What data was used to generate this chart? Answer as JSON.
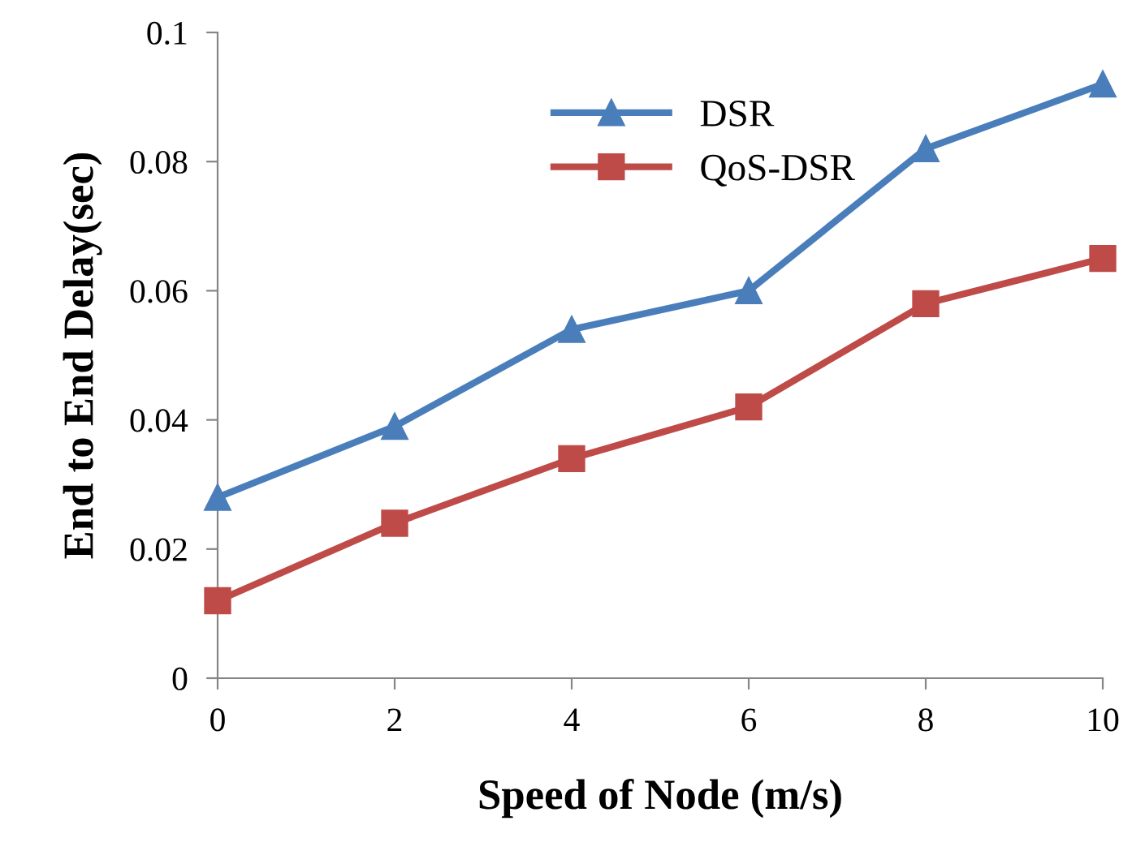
{
  "chart_data": {
    "type": "line",
    "xlabel": "Speed of Node (m/s)",
    "ylabel": "End to End Delay(sec)",
    "x": [
      0,
      2,
      4,
      6,
      8,
      10
    ],
    "series": [
      {
        "name": "DSR",
        "color": "#4a7ebb",
        "marker": "triangle",
        "values": [
          0.028,
          0.039,
          0.054,
          0.06,
          0.082,
          0.092
        ]
      },
      {
        "name": "QoS-DSR",
        "color": "#be4b48",
        "marker": "square",
        "values": [
          0.012,
          0.024,
          0.034,
          0.042,
          0.058,
          0.065
        ]
      }
    ],
    "xlim": [
      0,
      10
    ],
    "xticks": [
      0,
      2,
      4,
      6,
      8,
      10
    ],
    "ylim": [
      0,
      0.1
    ],
    "yticks": [
      0,
      0.02,
      0.04,
      0.06,
      0.08,
      0.1
    ],
    "grid": false,
    "legend": "top",
    "line_style": "solid"
  }
}
